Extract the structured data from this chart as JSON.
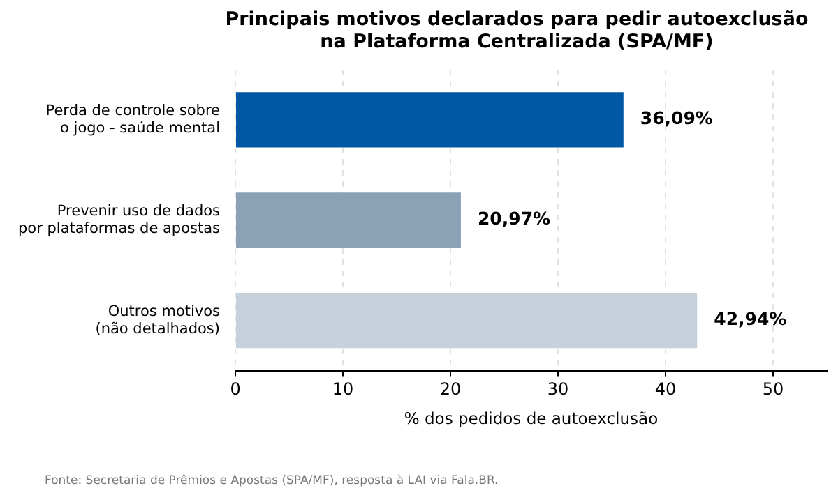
{
  "chart_data": {
    "type": "bar",
    "orientation": "horizontal",
    "title": "Principais motivos declarados para pedir autoexclusão\nna Plataforma Centralizada (SPA/MF)",
    "categories": [
      "Perda de controle sobre\no jogo - saúde mental",
      "Prevenir uso de dados\npor plataformas de apostas",
      "Outros motivos\n(não detalhados)"
    ],
    "values": [
      36.09,
      20.97,
      42.94
    ],
    "colors": [
      "#0057a3",
      "#8aa1b6",
      "#c6d1db"
    ],
    "value_labels": [
      "36,09%",
      "20,97%",
      "42,94%"
    ],
    "xlabel": "% dos pedidos de autoexclusão",
    "xlim": [
      0,
      55
    ],
    "xticks": [
      0,
      10,
      20,
      30,
      40,
      50
    ],
    "grid": "x",
    "legend": false,
    "annotations": [
      "Fonte: Secretaria de Prêmios e Apostas (SPA/MF), resposta à LAI via Fala.BR."
    ]
  }
}
